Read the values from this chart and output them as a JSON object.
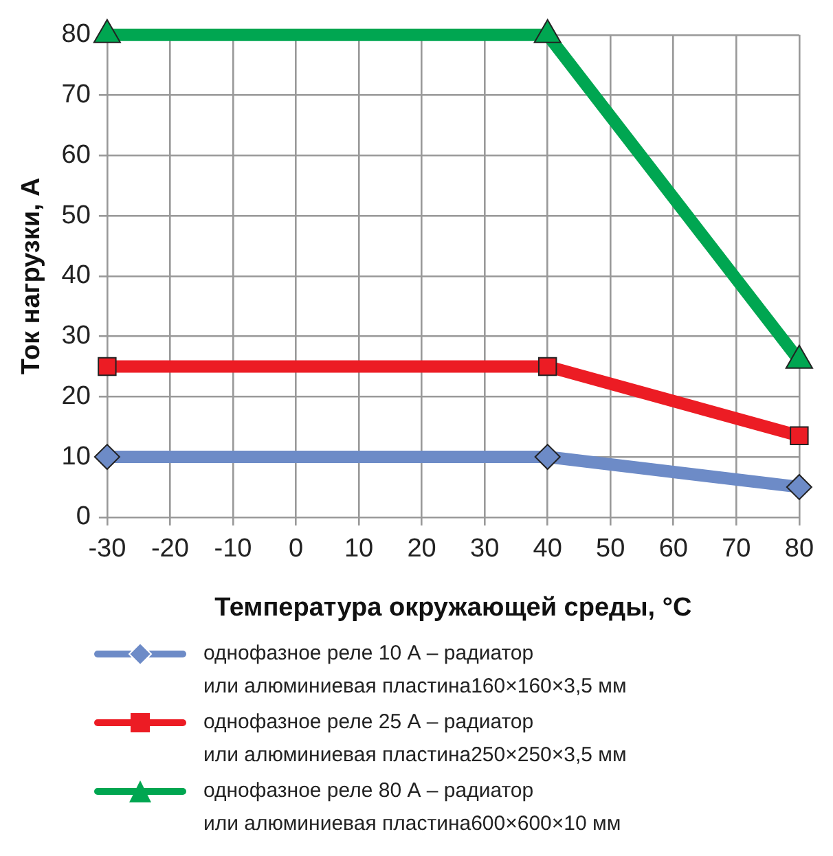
{
  "chart_data": {
    "type": "line",
    "xlabel": "Температура окружающей среды, °C",
    "ylabel": "Ток нагрузки, А",
    "xlim": [
      -30,
      80
    ],
    "xticks": [
      -30,
      -20,
      -10,
      0,
      10,
      20,
      30,
      40,
      50,
      60,
      70,
      80
    ],
    "ylim": [
      0,
      80
    ],
    "yticks": [
      0,
      10,
      20,
      30,
      40,
      50,
      60,
      70,
      80
    ],
    "grid": true,
    "legend": "bottom",
    "line_style": "solid",
    "series": [
      {
        "name": "однофазное реле 10 А – радиатор\nили алюминиевая пластина160×160×3,5 мм",
        "color": "#6d8bc7",
        "marker": "diamond",
        "x": [
          -30,
          40,
          80
        ],
        "values": [
          10,
          10,
          5
        ]
      },
      {
        "name": "однофазное реле 25 А – радиатор\nили алюминиевая пластина250×250×3,5 мм",
        "color": "#ec1c24",
        "marker": "square",
        "x": [
          -30,
          40,
          80
        ],
        "values": [
          25,
          25,
          13.5
        ]
      },
      {
        "name": "однофазное реле 80 А – радиатор\nили алюминиевая пластина600×600×10 мм",
        "color": "#00a651",
        "marker": "triangle",
        "x": [
          -30,
          40,
          80
        ],
        "values": [
          80,
          80,
          26
        ]
      }
    ]
  }
}
